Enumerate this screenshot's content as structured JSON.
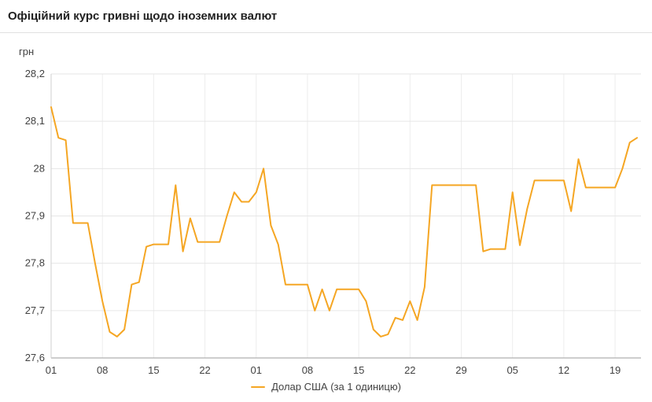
{
  "header": {
    "title": "Офіційний курс гривні щодо іноземних валют"
  },
  "legend": {
    "label": "Долар США (за 1 одиницю)"
  },
  "colors": {
    "line": "#f5a623",
    "grid": "#e6e6e6",
    "grid_vertical": "#ededed",
    "axis_bottom": "#9e9e9e",
    "axis_left": "#cfcfcf",
    "tick_text": "#424242",
    "title_text": "#212121",
    "divider": "#e0e0e0"
  },
  "chart_data": {
    "type": "line",
    "title": "Офіційний курс гривні щодо іноземних валют",
    "unit_label": "грн",
    "xlabel": "",
    "ylabel": "грн",
    "ylim": [
      27.6,
      28.2
    ],
    "grid": true,
    "legend_position": "bottom",
    "y_ticks": [
      {
        "value": 28.2,
        "label": "28,2"
      },
      {
        "value": 28.1,
        "label": "28,1"
      },
      {
        "value": 28.0,
        "label": "28"
      },
      {
        "value": 27.9,
        "label": "27,9"
      },
      {
        "value": 27.8,
        "label": "27,8"
      },
      {
        "value": 27.7,
        "label": "27,7"
      },
      {
        "value": 27.6,
        "label": "27,6"
      }
    ],
    "x_ticks": [
      {
        "index": 0,
        "label": "01"
      },
      {
        "index": 7,
        "label": "08"
      },
      {
        "index": 14,
        "label": "15"
      },
      {
        "index": 21,
        "label": "22"
      },
      {
        "index": 28,
        "label": "01"
      },
      {
        "index": 35,
        "label": "08"
      },
      {
        "index": 42,
        "label": "15"
      },
      {
        "index": 49,
        "label": "22"
      },
      {
        "index": 56,
        "label": "29"
      },
      {
        "index": 63,
        "label": "05"
      },
      {
        "index": 70,
        "label": "12"
      },
      {
        "index": 77,
        "label": "19"
      }
    ],
    "series": [
      {
        "name": "Долар США (за 1 одиницю)",
        "color": "#f5a623",
        "values": [
          28.13,
          28.065,
          28.06,
          27.885,
          27.885,
          27.885,
          27.8,
          27.72,
          27.655,
          27.645,
          27.66,
          27.755,
          27.76,
          27.835,
          27.84,
          27.84,
          27.84,
          27.965,
          27.825,
          27.895,
          27.845,
          27.845,
          27.845,
          27.845,
          27.9,
          27.95,
          27.93,
          27.93,
          27.95,
          28.0,
          27.88,
          27.84,
          27.755,
          27.755,
          27.755,
          27.755,
          27.7,
          27.745,
          27.7,
          27.745,
          27.745,
          27.745,
          27.745,
          27.72,
          27.66,
          27.645,
          27.65,
          27.685,
          27.68,
          27.72,
          27.68,
          27.75,
          27.965,
          27.965,
          27.965,
          27.965,
          27.965,
          27.965,
          27.965,
          27.825,
          27.83,
          27.83,
          27.83,
          27.95,
          27.838,
          27.915,
          27.975,
          27.975,
          27.975,
          27.975,
          27.975,
          27.91,
          28.02,
          27.96,
          27.96,
          27.96,
          27.96,
          27.96,
          28.0,
          28.055,
          28.065
        ]
      }
    ]
  }
}
